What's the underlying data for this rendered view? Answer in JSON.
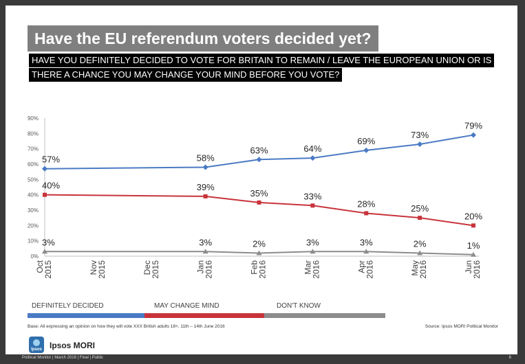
{
  "header": {
    "title": "Have the EU referendum voters decided yet?",
    "question_line1": "HAVE YOU DEFINITELY DECIDED TO VOTE FOR BRITAIN TO REMAIN / LEAVE THE EUROPEAN UNION OR IS",
    "question_line2": "THERE A CHANCE YOU MAY CHANGE YOUR MIND BEFORE YOU VOTE?"
  },
  "chart_data": {
    "type": "line",
    "title": "",
    "xlabel": "",
    "ylabel": "",
    "ylim": [
      0,
      90
    ],
    "yticks": [
      "0%",
      "10%",
      "20%",
      "30%",
      "40%",
      "50%",
      "60%",
      "70%",
      "80%",
      "90%"
    ],
    "categories": [
      "Oct 2015",
      "Nov 2015",
      "Dec 2015",
      "Jan 2016",
      "Feb 2016",
      "Mar 2016",
      "Apr 2016",
      "May 2016",
      "Jun 2016"
    ],
    "category_lines": [
      [
        "Oct",
        "2015"
      ],
      [
        "Nov",
        "2015"
      ],
      [
        "Dec",
        "2015"
      ],
      [
        "Jan",
        "2016"
      ],
      [
        "Feb",
        "2016"
      ],
      [
        "Mar",
        "2016"
      ],
      [
        "Apr",
        "2016"
      ],
      [
        "May",
        "2016"
      ],
      [
        "Jun",
        "2016"
      ]
    ],
    "grid": false,
    "legend_position": "bottom",
    "series": [
      {
        "name": "DEFINITELY DECIDED",
        "color": "#4a7ac4",
        "marker": "diamond",
        "points": [
          {
            "x": "Oct 2015",
            "y": 57,
            "label": "57%"
          },
          {
            "x": "Jan 2016",
            "y": 58,
            "label": "58%"
          },
          {
            "x": "Feb 2016",
            "y": 63,
            "label": "63%"
          },
          {
            "x": "Mar 2016",
            "y": 64,
            "label": "64%"
          },
          {
            "x": "Apr 2016",
            "y": 69,
            "label": "69%"
          },
          {
            "x": "May 2016",
            "y": 73,
            "label": "73%"
          },
          {
            "x": "Jun 2016",
            "y": 79,
            "label": "79%"
          }
        ]
      },
      {
        "name": "MAY CHANGE MIND",
        "color": "#c8333b",
        "marker": "square",
        "points": [
          {
            "x": "Oct 2015",
            "y": 40,
            "label": "40%"
          },
          {
            "x": "Jan 2016",
            "y": 39,
            "label": "39%"
          },
          {
            "x": "Feb 2016",
            "y": 35,
            "label": "35%"
          },
          {
            "x": "Mar 2016",
            "y": 33,
            "label": "33%"
          },
          {
            "x": "Apr 2016",
            "y": 28,
            "label": "28%"
          },
          {
            "x": "May 2016",
            "y": 25,
            "label": "25%"
          },
          {
            "x": "Jun 2016",
            "y": 20,
            "label": "20%"
          }
        ]
      },
      {
        "name": "DON'T KNOW",
        "color": "#8c8c8c",
        "marker": "triangle",
        "points": [
          {
            "x": "Oct 2015",
            "y": 3,
            "label": "3%"
          },
          {
            "x": "Jan 2016",
            "y": 3,
            "label": "3%"
          },
          {
            "x": "Feb 2016",
            "y": 2,
            "label": "2%"
          },
          {
            "x": "Mar 2016",
            "y": 3,
            "label": "3%"
          },
          {
            "x": "Apr 2016",
            "y": 3,
            "label": "3%"
          },
          {
            "x": "May 2016",
            "y": 2,
            "label": "2%"
          },
          {
            "x": "Jun 2016",
            "y": 1,
            "label": "1%"
          }
        ]
      }
    ]
  },
  "notes": {
    "base": "Base: All expressing an opinion on how they will vote XXX British adults 18+, 11th – 14th June 2016",
    "source": "Source: Ipsos MORI Political Monitor"
  },
  "brand": {
    "logo_text": "Ipsos",
    "name": "Ipsos MORI"
  },
  "footer": {
    "text": "Political Monitor | March 2016 | Final | Public",
    "page_number": "6"
  }
}
